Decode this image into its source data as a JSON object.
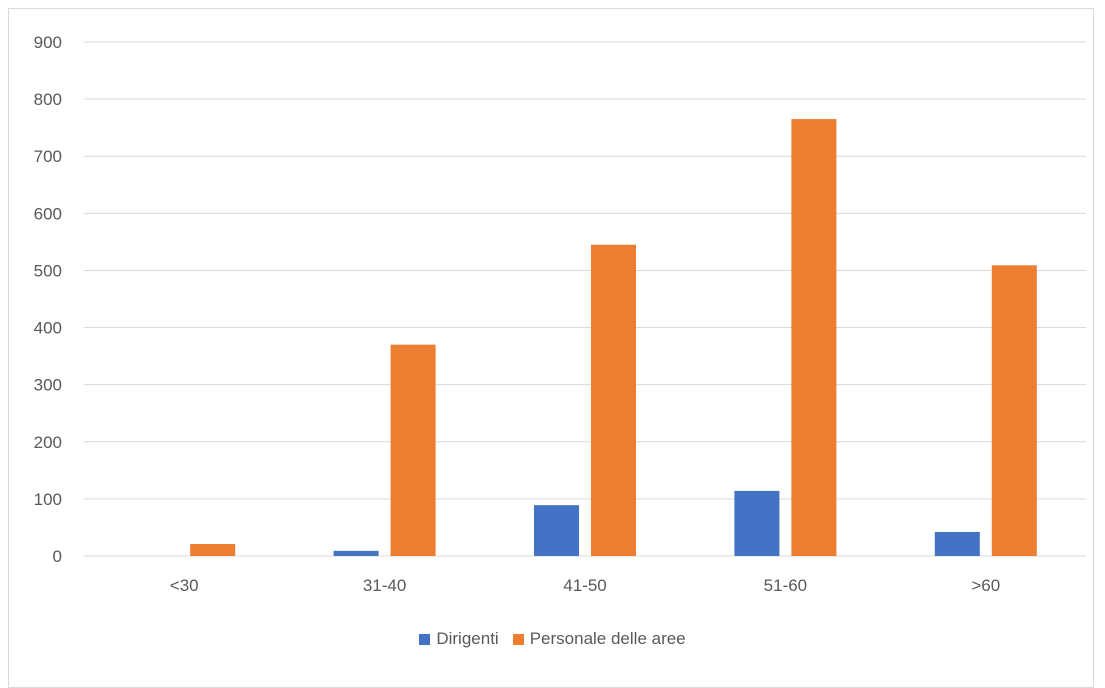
{
  "chart_data": {
    "type": "bar",
    "categories": [
      "<30",
      "31-40",
      "41-50",
      "51-60",
      ">60"
    ],
    "series": [
      {
        "name": "Dirigenti",
        "color": "#4472c4",
        "values": [
          0,
          9,
          89,
          114,
          42
        ]
      },
      {
        "name": "Personale delle aree",
        "color": "#ed7d31",
        "values": [
          21,
          370,
          545,
          765,
          509
        ]
      }
    ],
    "ylim": [
      0,
      900
    ],
    "yticks": [
      0,
      100,
      200,
      300,
      400,
      500,
      600,
      700,
      800,
      900
    ],
    "grid": true,
    "legend_position": "bottom"
  }
}
